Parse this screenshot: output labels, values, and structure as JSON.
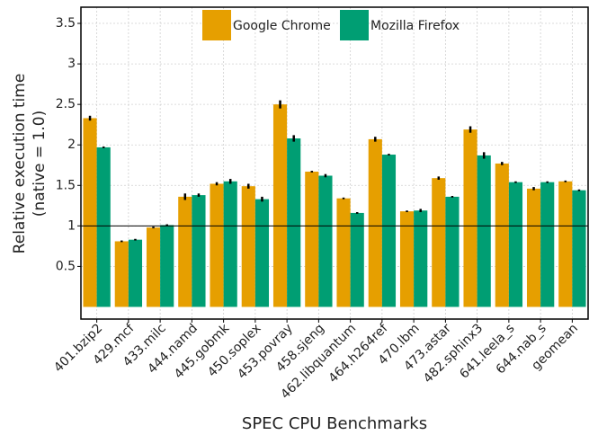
{
  "chart_data": {
    "type": "bar",
    "x_label": "SPEC CPU Benchmarks",
    "y_label": [
      "Relative execution time",
      "(native = 1.0)"
    ],
    "categories": [
      "401.bzip2",
      "429.mcf",
      "433.milc",
      "444.namd",
      "445.gobmk",
      "450.soplex",
      "453.povray",
      "458.sjeng",
      "462.libquantum",
      "464.h264ref",
      "470.lbm",
      "473.astar",
      "482.sphinx3",
      "641.leela_s",
      "644.nab_s",
      "geomean"
    ],
    "series": [
      {
        "name": "Google Chrome",
        "color": "#e69f00",
        "values": [
          2.33,
          0.81,
          0.98,
          1.36,
          1.52,
          1.49,
          2.5,
          1.67,
          1.34,
          2.07,
          1.18,
          1.59,
          2.19,
          1.77,
          1.46,
          1.55
        ],
        "errors": [
          0.03,
          0.01,
          0.01,
          0.04,
          0.02,
          0.03,
          0.05,
          0.01,
          0.01,
          0.03,
          0.01,
          0.02,
          0.04,
          0.02,
          0.02,
          0.01
        ]
      },
      {
        "name": "Mozilla Firefox",
        "color": "#009e73",
        "values": [
          1.97,
          0.83,
          1.01,
          1.38,
          1.55,
          1.33,
          2.08,
          1.62,
          1.16,
          1.88,
          1.19,
          1.36,
          1.87,
          1.54,
          1.54,
          1.44
        ],
        "errors": [
          0.01,
          0.01,
          0.01,
          0.02,
          0.03,
          0.03,
          0.04,
          0.02,
          0.01,
          0.01,
          0.02,
          0.01,
          0.04,
          0.01,
          0.01,
          0.01
        ]
      }
    ],
    "reference_line": 1.0,
    "ylim": [
      -0.15,
      3.7
    ],
    "yticks": [
      0.5,
      1.0,
      1.5,
      2.0,
      2.5,
      3.0,
      3.5
    ],
    "grid": true,
    "legend": "top"
  }
}
